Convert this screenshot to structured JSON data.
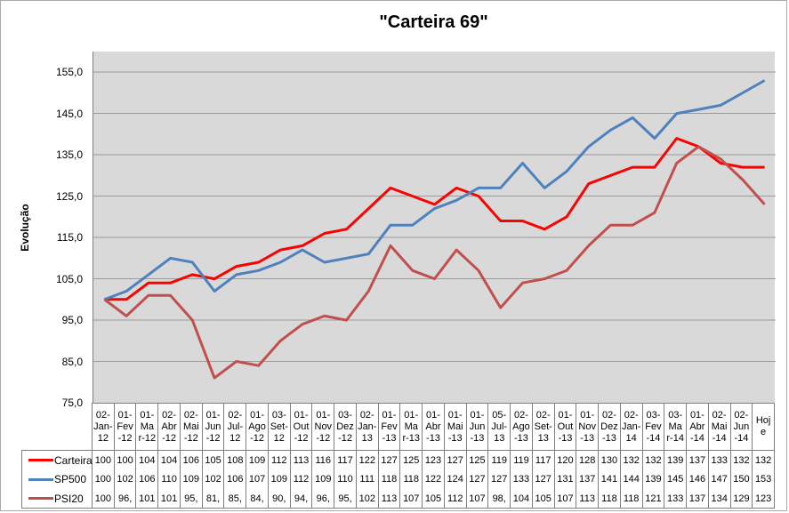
{
  "chart_data": {
    "type": "line",
    "title": "\"Carteira 69\"",
    "xlabel": "",
    "ylabel": "Evolução",
    "ylim": [
      75,
      160
    ],
    "grid": true,
    "grid_step": 10,
    "plot_bg": "#d9d9d9",
    "gridline_color": "#9b9b9b",
    "legend_position": "left-of-data-table",
    "categories": [
      "02-Jan-12",
      "01-Fev-12",
      "01-Mar-12",
      "02-Abr-12",
      "02-Mai-12",
      "01-Jun-12",
      "02-Jul-12",
      "01-Ago-12",
      "03-Set-12",
      "01-Out-12",
      "01-Nov-12",
      "03-Dez-12",
      "02-Jan-13",
      "01-Fev-13",
      "01-Mar-13",
      "01-Abr-13",
      "01-Mai-13",
      "01-Jun-13",
      "05-Jul-13",
      "02-Ago-13",
      "02-Set-13",
      "01-Out-13",
      "01-Nov-13",
      "02-Dez-13",
      "02-Jan-14",
      "03-Fev-14",
      "03-Mar-14",
      "01-Abr-14",
      "02-Mai-14",
      "02-Jun-14",
      "Hoje"
    ],
    "series": [
      {
        "name": "Carteira",
        "color": "#ff0000",
        "values": [
          100,
          100,
          104,
          104,
          106,
          105,
          108,
          109,
          112,
          113,
          116,
          117,
          122,
          127,
          125,
          123,
          127,
          125,
          119,
          119,
          117,
          120,
          128,
          130,
          132,
          132,
          139,
          137,
          133,
          132,
          132
        ]
      },
      {
        "name": "SP500",
        "color": "#4f81bd",
        "values": [
          100,
          102,
          106,
          110,
          109,
          102,
          106,
          107,
          109,
          112,
          109,
          110,
          111,
          118,
          118,
          122,
          124,
          127,
          127,
          133,
          127,
          131,
          137,
          141,
          144,
          139,
          145,
          146,
          147,
          150,
          153
        ]
      },
      {
        "name": "PSI20",
        "color": "#c0504d",
        "values": [
          100,
          96,
          101,
          101,
          95,
          81,
          85,
          84,
          90,
          94,
          96,
          95,
          102,
          113,
          107,
          105,
          112,
          107,
          98,
          104,
          105,
          107,
          113,
          118,
          118,
          121,
          133,
          137,
          134,
          129,
          123
        ]
      }
    ]
  },
  "y_axis": {
    "label": "Evolução",
    "tick_labels": [
      "155,0",
      "145,0",
      "135,0",
      "125,0",
      "115,0",
      "105,0",
      "95,0",
      "85,0",
      "75,0"
    ]
  },
  "data_table": {
    "column_headers_display": [
      "02-\nJan-\n12",
      "01-\nFev\n-12",
      "01-\nMa\nr-12",
      "02-\nAbr\n-12",
      "02-\nMai\n-12",
      "01-\nJun\n-12",
      "02-\nJul-\n12",
      "01-\nAgo\n-12",
      "03-\nSet-\n12",
      "01-\nOut\n-12",
      "01-\nNov\n-12",
      "03-\nDez\n-12",
      "02-\nJan-\n13",
      "01-\nFev\n-13",
      "01-\nMa\nr-13",
      "01-\nAbr\n-13",
      "01-\nMai\n-13",
      "01-\nJun\n-13",
      "05-\nJul-\n13",
      "02-\nAgo\n-13",
      "02-\nSet-\n13",
      "01-\nOut\n-13",
      "01-\nNov\n-13",
      "02-\nDez\n-13",
      "02-\nJan-\n14",
      "03-\nFev\n-14",
      "03-\nMa\nr-14",
      "01-\nAbr\n-14",
      "02-\nMai\n-14",
      "02-\nJun\n-14",
      "Hoj\ne"
    ],
    "rows": [
      {
        "label": "Carteira",
        "swatch_color": "#ff0000",
        "values_display": [
          "100",
          "100",
          "104",
          "104",
          "106",
          "105",
          "108",
          "109",
          "112",
          "113",
          "116",
          "117",
          "122",
          "127",
          "125",
          "123",
          "127",
          "125",
          "119",
          "119",
          "117",
          "120",
          "128",
          "130",
          "132",
          "132",
          "139",
          "137",
          "133",
          "132",
          "132"
        ]
      },
      {
        "label": "SP500",
        "swatch_color": "#4f81bd",
        "values_display": [
          "100",
          "102",
          "106",
          "110",
          "109",
          "102",
          "106",
          "107",
          "109",
          "112",
          "109",
          "110",
          "111",
          "118",
          "118",
          "122",
          "124",
          "127",
          "127",
          "133",
          "127",
          "131",
          "137",
          "141",
          "144",
          "139",
          "145",
          "146",
          "147",
          "150",
          "153"
        ]
      },
      {
        "label": "PSI20",
        "swatch_color": "#c0504d",
        "values_display": [
          "100",
          "96,",
          "101",
          "101",
          "95,",
          "81,",
          "85,",
          "84,",
          "90,",
          "94,",
          "96,",
          "95,",
          "102",
          "113",
          "107",
          "105",
          "112",
          "107",
          "98,",
          "104",
          "105",
          "107",
          "113",
          "118",
          "118",
          "121",
          "133",
          "137",
          "134",
          "129",
          "123"
        ]
      }
    ]
  }
}
